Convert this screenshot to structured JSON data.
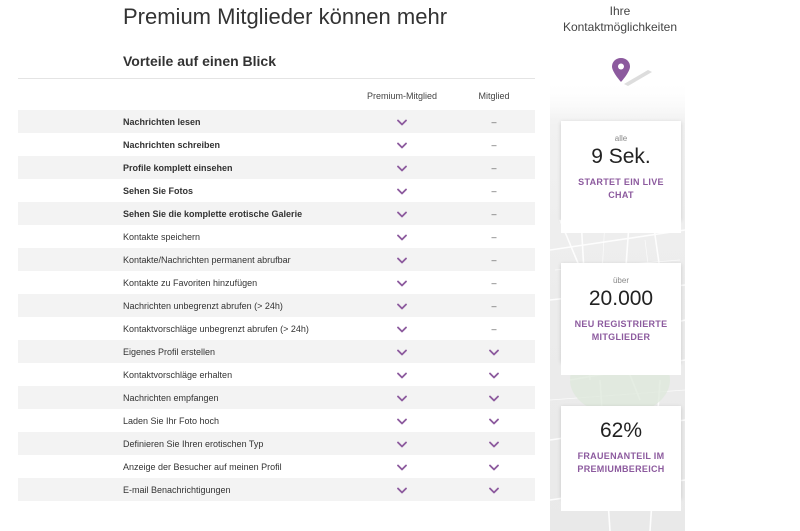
{
  "header": {
    "title": "Premium Mitglieder können mehr",
    "subtitle": "Vorteile auf einen Blick"
  },
  "columns": {
    "premium": "Premium-Mitglied",
    "member": "Mitglied"
  },
  "colors": {
    "accent": "#8c5a9e",
    "row_stripe": "#f3f3f3"
  },
  "icons": {
    "check": "check-icon",
    "pin": "location-pin-icon"
  },
  "rows": [
    {
      "label": "Nachrichten lesen",
      "bold": true,
      "premium": "check",
      "member": "–"
    },
    {
      "label": "Nachrichten schreiben",
      "bold": true,
      "premium": "check",
      "member": "–"
    },
    {
      "label": "Profile komplett einsehen",
      "bold": true,
      "premium": "check",
      "member": "–"
    },
    {
      "label": "Sehen Sie Fotos",
      "bold": true,
      "premium": "check",
      "member": "–"
    },
    {
      "label": "Sehen Sie die komplette erotische Galerie",
      "bold": true,
      "premium": "check",
      "member": "–"
    },
    {
      "label": "Kontakte speichern",
      "bold": false,
      "premium": "check",
      "member": "–"
    },
    {
      "label": "Kontakte/Nachrichten permanent abrufbar",
      "bold": false,
      "premium": "check",
      "member": "–"
    },
    {
      "label": "Kontakte zu Favoriten hinzufügen",
      "bold": false,
      "premium": "check",
      "member": "–"
    },
    {
      "label": "Nachrichten unbegrenzt abrufen (> 24h)",
      "bold": false,
      "premium": "check",
      "member": "–"
    },
    {
      "label": "Kontaktvorschläge unbegrenzt abrufen (> 24h)",
      "bold": false,
      "premium": "check",
      "member": "–"
    },
    {
      "label": "Eigenes Profil erstellen",
      "bold": false,
      "premium": "check",
      "member": "check"
    },
    {
      "label": "Kontaktvorschläge erhalten",
      "bold": false,
      "premium": "check",
      "member": "check"
    },
    {
      "label": "Nachrichten empfangen",
      "bold": false,
      "premium": "check",
      "member": "check"
    },
    {
      "label": "Laden Sie Ihr Foto hoch",
      "bold": false,
      "premium": "check",
      "member": "check"
    },
    {
      "label": "Definieren Sie Ihren erotischen Typ",
      "bold": false,
      "premium": "check",
      "member": "check"
    },
    {
      "label": "Anzeige der Besucher auf meinen Profil",
      "bold": false,
      "premium": "check",
      "member": "check"
    },
    {
      "label": "E-mail Benachrichtigungen",
      "bold": false,
      "premium": "check",
      "member": "check"
    }
  ],
  "sidebar": {
    "title_line1": "Ihre",
    "title_line2": "Kontaktmöglichkeiten",
    "cards": [
      {
        "small": "alle",
        "big": "9 Sek.",
        "desc": "STARTET EIN LIVE CHAT"
      },
      {
        "small": "über",
        "big": "20.000",
        "desc": "NEU REGISTRIERTE MITGLIEDER"
      },
      {
        "small": "",
        "big": "62%",
        "desc": "FRAUENANTEIL IM PREMIUMBEREICH"
      }
    ]
  }
}
